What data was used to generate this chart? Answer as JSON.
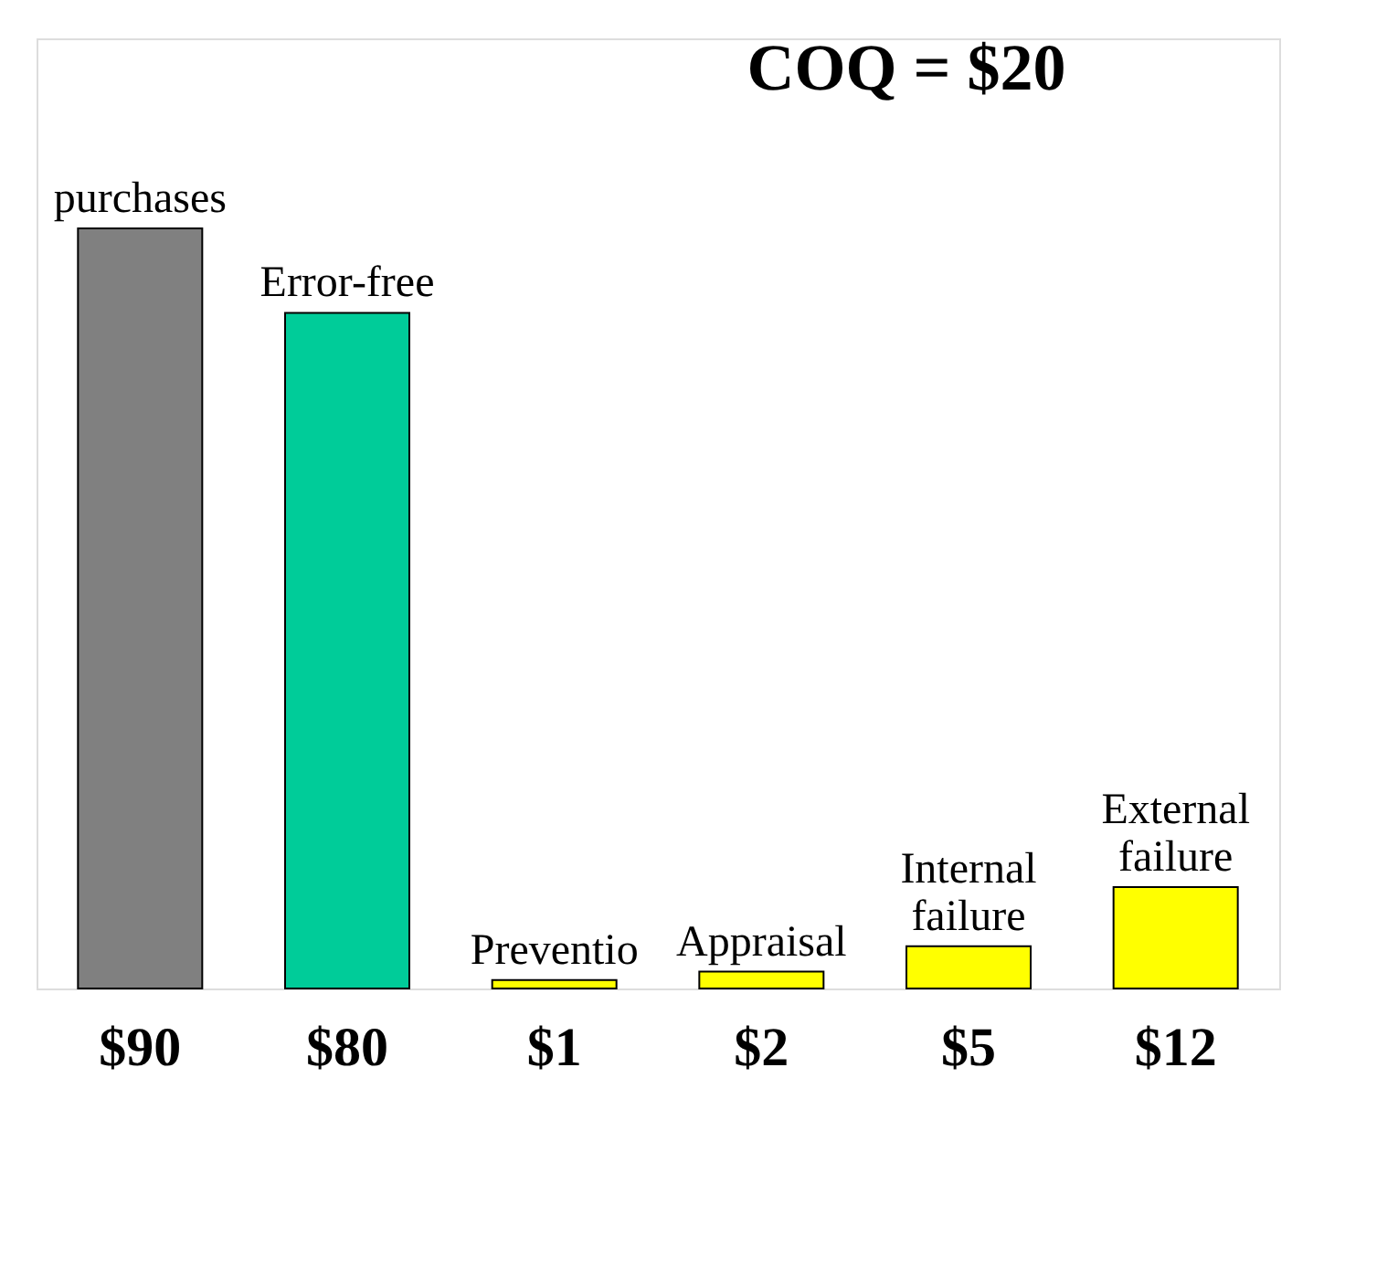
{
  "chart_data": {
    "type": "bar",
    "categories": [
      "purchases",
      "Error-free",
      "Preventio",
      "Appraisal",
      "Internal failure",
      "External failure"
    ],
    "values": [
      90,
      80,
      1,
      2,
      5,
      12
    ],
    "colors": [
      "#808080",
      "#00cc99",
      "#ffff00",
      "#ffff00",
      "#ffff00",
      "#ffff00"
    ],
    "value_labels": [
      "$90",
      "$80",
      "$1",
      "$2",
      "$5",
      "$12"
    ],
    "annotations": [
      "COQ = $20"
    ]
  }
}
